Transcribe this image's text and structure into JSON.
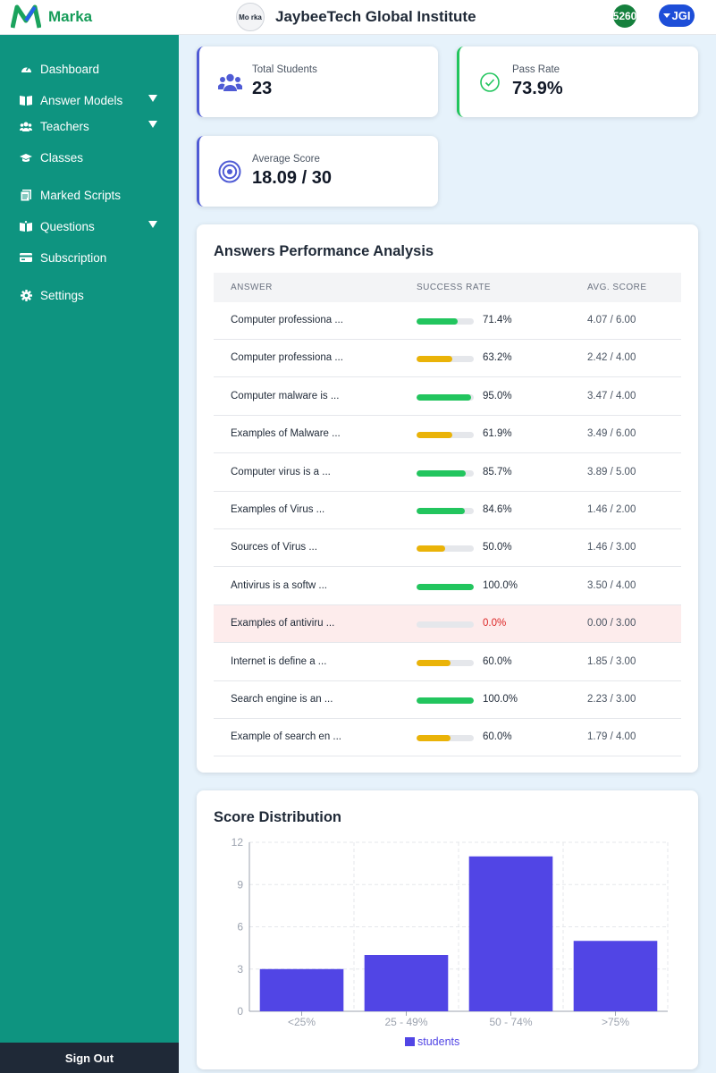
{
  "header": {
    "brand": "Marka",
    "institute_name": "JaybeeTech Global Institute",
    "institute_logo_text": "Mo rka",
    "credits": "5260",
    "user_initials": "JGI"
  },
  "sidebar": {
    "items": [
      {
        "label": "Dashboard",
        "icon": "dashboard-icon",
        "expandable": false
      },
      {
        "label": "Answer Models",
        "icon": "book-icon",
        "expandable": true
      },
      {
        "label": "Teachers",
        "icon": "users-icon",
        "expandable": true
      },
      {
        "label": "Classes",
        "icon": "graduation-cap-icon",
        "expandable": false
      },
      {
        "label": "Marked Scripts",
        "icon": "documents-icon",
        "expandable": false
      },
      {
        "label": "Questions",
        "icon": "book-reader-icon",
        "expandable": true
      },
      {
        "label": "Subscription",
        "icon": "credit-card-icon",
        "expandable": false
      },
      {
        "label": "Settings",
        "icon": "gear-icon",
        "expandable": false
      }
    ],
    "sign_out": "Sign Out"
  },
  "stats": {
    "total_students": {
      "label": "Total Students",
      "value": "23"
    },
    "pass_rate": {
      "label": "Pass Rate",
      "value": "73.9%"
    },
    "average_score": {
      "label": "Average Score",
      "value": "18.09 / 30"
    }
  },
  "performance": {
    "title": "Answers Performance Analysis",
    "columns": [
      "ANSWER",
      "SUCCESS RATE",
      "AVG. SCORE"
    ],
    "rows": [
      {
        "answer": "Computer professiona ...",
        "rate": "71.4%",
        "rate_value": 71.4,
        "score": "4.07 / 6.00",
        "status": "good"
      },
      {
        "answer": "Computer professiona ...",
        "rate": "63.2%",
        "rate_value": 63.2,
        "score": "2.42 / 4.00",
        "status": "fair"
      },
      {
        "answer": "Computer malware is ...",
        "rate": "95.0%",
        "rate_value": 95.0,
        "score": "3.47 / 4.00",
        "status": "good"
      },
      {
        "answer": "Examples of Malware ...",
        "rate": "61.9%",
        "rate_value": 61.9,
        "score": "3.49 / 6.00",
        "status": "fair"
      },
      {
        "answer": "Computer virus is a ...",
        "rate": "85.7%",
        "rate_value": 85.7,
        "score": "3.89 / 5.00",
        "status": "good"
      },
      {
        "answer": "Examples of Virus ...",
        "rate": "84.6%",
        "rate_value": 84.6,
        "score": "1.46 / 2.00",
        "status": "good"
      },
      {
        "answer": "Sources of Virus ...",
        "rate": "50.0%",
        "rate_value": 50.0,
        "score": "1.46 / 3.00",
        "status": "fair"
      },
      {
        "answer": "Antivirus is a softw ...",
        "rate": "100.0%",
        "rate_value": 100.0,
        "score": "3.50 / 4.00",
        "status": "good"
      },
      {
        "answer": "Examples of antiviru ...",
        "rate": "0.0%",
        "rate_value": 0.0,
        "score": "0.00 / 3.00",
        "status": "fail"
      },
      {
        "answer": "Internet is define a ...",
        "rate": "60.0%",
        "rate_value": 60.0,
        "score": "1.85 / 3.00",
        "status": "fair"
      },
      {
        "answer": "Search engine is an ...",
        "rate": "100.0%",
        "rate_value": 100.0,
        "score": "2.23 / 3.00",
        "status": "good"
      },
      {
        "answer": "Example of search en ...",
        "rate": "60.0%",
        "rate_value": 60.0,
        "score": "1.79 / 4.00",
        "status": "fair"
      }
    ],
    "colors": {
      "good": "#22c55e",
      "fair": "#eab308",
      "fail": "#e5e7eb"
    }
  },
  "chart_data": {
    "type": "bar",
    "title": "Score Distribution",
    "categories": [
      "<25%",
      "25 - 49%",
      "50 - 74%",
      ">75%"
    ],
    "series": [
      {
        "name": "students",
        "values": [
          3,
          4,
          11,
          5
        ],
        "color": "#5145e5"
      }
    ],
    "ylim": [
      0,
      12
    ],
    "yticks": [
      "0",
      "3",
      "6",
      "9",
      "12"
    ],
    "grid": true,
    "legend": "bottom"
  }
}
